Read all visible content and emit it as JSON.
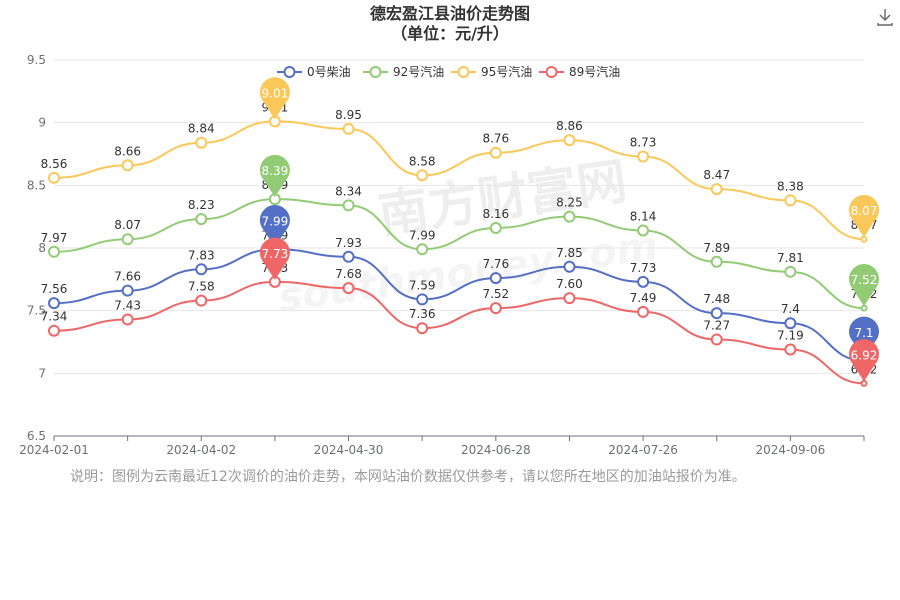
{
  "header": {
    "title": "德宏盈江县油价走势图",
    "subtitle": "（单位：元/升）"
  },
  "toolbar": {
    "download_icon": "download-icon"
  },
  "watermark": {
    "text": "南方财富网",
    "sub": "southmoney.com"
  },
  "note": "说明：图例为云南最近12次调价的油价走势，本网站油价数据仅供参考，请以您所在地区的加油站报价为准。",
  "chart_data": {
    "type": "line",
    "x": [
      "2024-02-01",
      "",
      "2024-04-02",
      "",
      "2024-04-30",
      "",
      "2024-06-28",
      "",
      "2024-07-26",
      "",
      "2024-09-06",
      ""
    ],
    "xticks": [
      "2024-02-01",
      "2024-04-02",
      "2024-04-30",
      "2024-06-28",
      "2024-07-26",
      "2024-09-06"
    ],
    "ylim": [
      6.5,
      9.5
    ],
    "yticks": [
      "6.5",
      "7",
      "7.5",
      "8",
      "8.5",
      "9",
      "9.5"
    ],
    "grid": true,
    "legend_position": "top",
    "series": [
      {
        "name": "0号柴油",
        "color": "#5470c6",
        "values": [
          7.56,
          7.66,
          7.83,
          7.99,
          7.93,
          7.59,
          7.76,
          7.85,
          7.73,
          7.48,
          7.4,
          7.1
        ],
        "labels": [
          "7.56",
          "7.66",
          "7.83",
          "7.99",
          "7.93",
          "7.59",
          "7.76",
          "7.85",
          "7.73",
          "7.48",
          "7.4",
          "7.1"
        ],
        "max_label": "7.99",
        "min_label": "7.1"
      },
      {
        "name": "92号汽油",
        "color": "#91cc75",
        "values": [
          7.97,
          8.07,
          8.23,
          8.39,
          8.34,
          7.99,
          8.16,
          8.25,
          8.14,
          7.89,
          7.81,
          7.52
        ],
        "labels": [
          "7.97",
          "8.07",
          "8.23",
          "8.39",
          "8.34",
          "7.99",
          "8.16",
          "8.25",
          "8.14",
          "7.89",
          "7.81",
          "7.52"
        ],
        "max_label": "8.39",
        "min_label": "7.52"
      },
      {
        "name": "95号汽油",
        "color": "#fac858",
        "values": [
          8.56,
          8.66,
          8.84,
          9.01,
          8.95,
          8.58,
          8.76,
          8.86,
          8.73,
          8.47,
          8.38,
          8.07
        ],
        "labels": [
          "8.56",
          "8.66",
          "8.84",
          "9.01",
          "8.95",
          "8.58",
          "8.76",
          "8.86",
          "8.73",
          "8.47",
          "8.38",
          "8.07"
        ],
        "max_label": "9.01",
        "min_label": "8.07"
      },
      {
        "name": "89号汽油",
        "color": "#ee6666",
        "values": [
          7.34,
          7.43,
          7.58,
          7.73,
          7.68,
          7.36,
          7.52,
          7.6,
          7.49,
          7.27,
          7.19,
          6.92
        ],
        "labels": [
          "7.34",
          "7.43",
          "7.58",
          "7.73",
          "7.68",
          "7.36",
          "7.52",
          "7.60",
          "7.49",
          "7.27",
          "7.19",
          "6.92"
        ],
        "max_label": "7.73",
        "min_label": "6.92"
      }
    ]
  }
}
